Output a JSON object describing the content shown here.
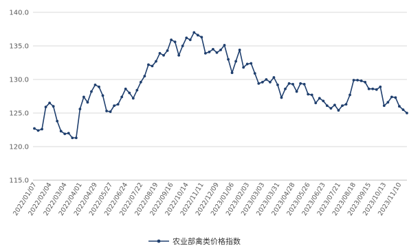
{
  "chart_data": {
    "type": "line",
    "title": "",
    "xlabel": "",
    "ylabel": "",
    "ylim": [
      115.0,
      140.0
    ],
    "y_ticks": [
      "115.0",
      "120.0",
      "125.0",
      "130.0",
      "135.0",
      "140.0"
    ],
    "x_ticks": [
      "2022/01/07",
      "2022/02/04",
      "2022/03/04",
      "2022/04/01",
      "2022/04/29",
      "2022/05/27",
      "2022/06/24",
      "2022/07/22",
      "2022/08/19",
      "2022/09/16",
      "2022/10/14",
      "2022/11/11",
      "2022/12/09",
      "2023/01/06",
      "2023/02/03",
      "2023/03/03",
      "2023/03/31",
      "2023/04/28",
      "2023/05/26",
      "2023/06/23",
      "2023/07/21",
      "2023/08/18",
      "2023/09/15",
      "2023/10/13",
      "2023/11/10"
    ],
    "grid": "horizontal",
    "legend_position": "bottom",
    "series": [
      {
        "name": "农业部禽类价格指数",
        "color": "#1f3f6e",
        "x": [
          "2022/01/07",
          "2022/01/14",
          "2022/01/21",
          "2022/01/28",
          "2022/02/04",
          "2022/02/11",
          "2022/02/18",
          "2022/02/25",
          "2022/03/04",
          "2022/03/11",
          "2022/03/18",
          "2022/03/25",
          "2022/04/01",
          "2022/04/08",
          "2022/04/15",
          "2022/04/22",
          "2022/04/29",
          "2022/05/06",
          "2022/05/13",
          "2022/05/20",
          "2022/05/27",
          "2022/06/03",
          "2022/06/10",
          "2022/06/17",
          "2022/06/24",
          "2022/07/01",
          "2022/07/08",
          "2022/07/15",
          "2022/07/22",
          "2022/07/29",
          "2022/08/05",
          "2022/08/12",
          "2022/08/19",
          "2022/08/26",
          "2022/09/02",
          "2022/09/09",
          "2022/09/16",
          "2022/09/23",
          "2022/09/30",
          "2022/10/07",
          "2022/10/14",
          "2022/10/21",
          "2022/10/28",
          "2022/11/04",
          "2022/11/11",
          "2022/11/18",
          "2022/11/25",
          "2022/12/02",
          "2022/12/09",
          "2022/12/16",
          "2022/12/23",
          "2022/12/30",
          "2023/01/06",
          "2023/01/13",
          "2023/01/20",
          "2023/01/27",
          "2023/02/03",
          "2023/02/10",
          "2023/02/17",
          "2023/02/24",
          "2023/03/03",
          "2023/03/10",
          "2023/03/17",
          "2023/03/24",
          "2023/03/31",
          "2023/04/07",
          "2023/04/14",
          "2023/04/21",
          "2023/04/28",
          "2023/05/05",
          "2023/05/12",
          "2023/05/19",
          "2023/05/26",
          "2023/06/02",
          "2023/06/09",
          "2023/06/16",
          "2023/06/23",
          "2023/06/30",
          "2023/07/07",
          "2023/07/14",
          "2023/07/21",
          "2023/07/28",
          "2023/08/04",
          "2023/08/11",
          "2023/08/18",
          "2023/08/25",
          "2023/09/01",
          "2023/09/08",
          "2023/09/15",
          "2023/09/22",
          "2023/09/29",
          "2023/10/06",
          "2023/10/13",
          "2023/10/20",
          "2023/10/27",
          "2023/11/03",
          "2023/11/10",
          "2023/11/17",
          "2023/11/24"
        ],
        "values": [
          122.7,
          122.4,
          122.6,
          125.9,
          126.5,
          126.0,
          123.8,
          122.3,
          121.9,
          122.0,
          121.3,
          121.3,
          125.6,
          127.4,
          126.6,
          128.2,
          129.2,
          128.9,
          127.6,
          125.3,
          125.2,
          126.1,
          126.3,
          127.4,
          128.6,
          128.0,
          127.2,
          128.4,
          129.6,
          130.5,
          132.2,
          132.0,
          132.7,
          133.9,
          133.6,
          134.3,
          135.9,
          135.6,
          133.6,
          135.0,
          136.2,
          135.9,
          137.0,
          136.6,
          136.3,
          133.9,
          134.1,
          134.5,
          134.0,
          134.4,
          135.1,
          133.0,
          131.0,
          132.7,
          134.4,
          131.8,
          132.3,
          132.4,
          130.9,
          129.4,
          129.6,
          130.0,
          129.6,
          130.3,
          129.2,
          127.3,
          128.6,
          129.4,
          129.3,
          128.2,
          129.4,
          129.3,
          127.8,
          127.7,
          126.5,
          127.2,
          126.8,
          126.1,
          125.7,
          126.2,
          125.4,
          126.1,
          126.3,
          127.7,
          129.9,
          129.9,
          129.8,
          129.6,
          128.6,
          128.6,
          128.5,
          128.9,
          126.1,
          126.6,
          127.4,
          127.3,
          126.0,
          125.5,
          125.0
        ]
      }
    ]
  }
}
